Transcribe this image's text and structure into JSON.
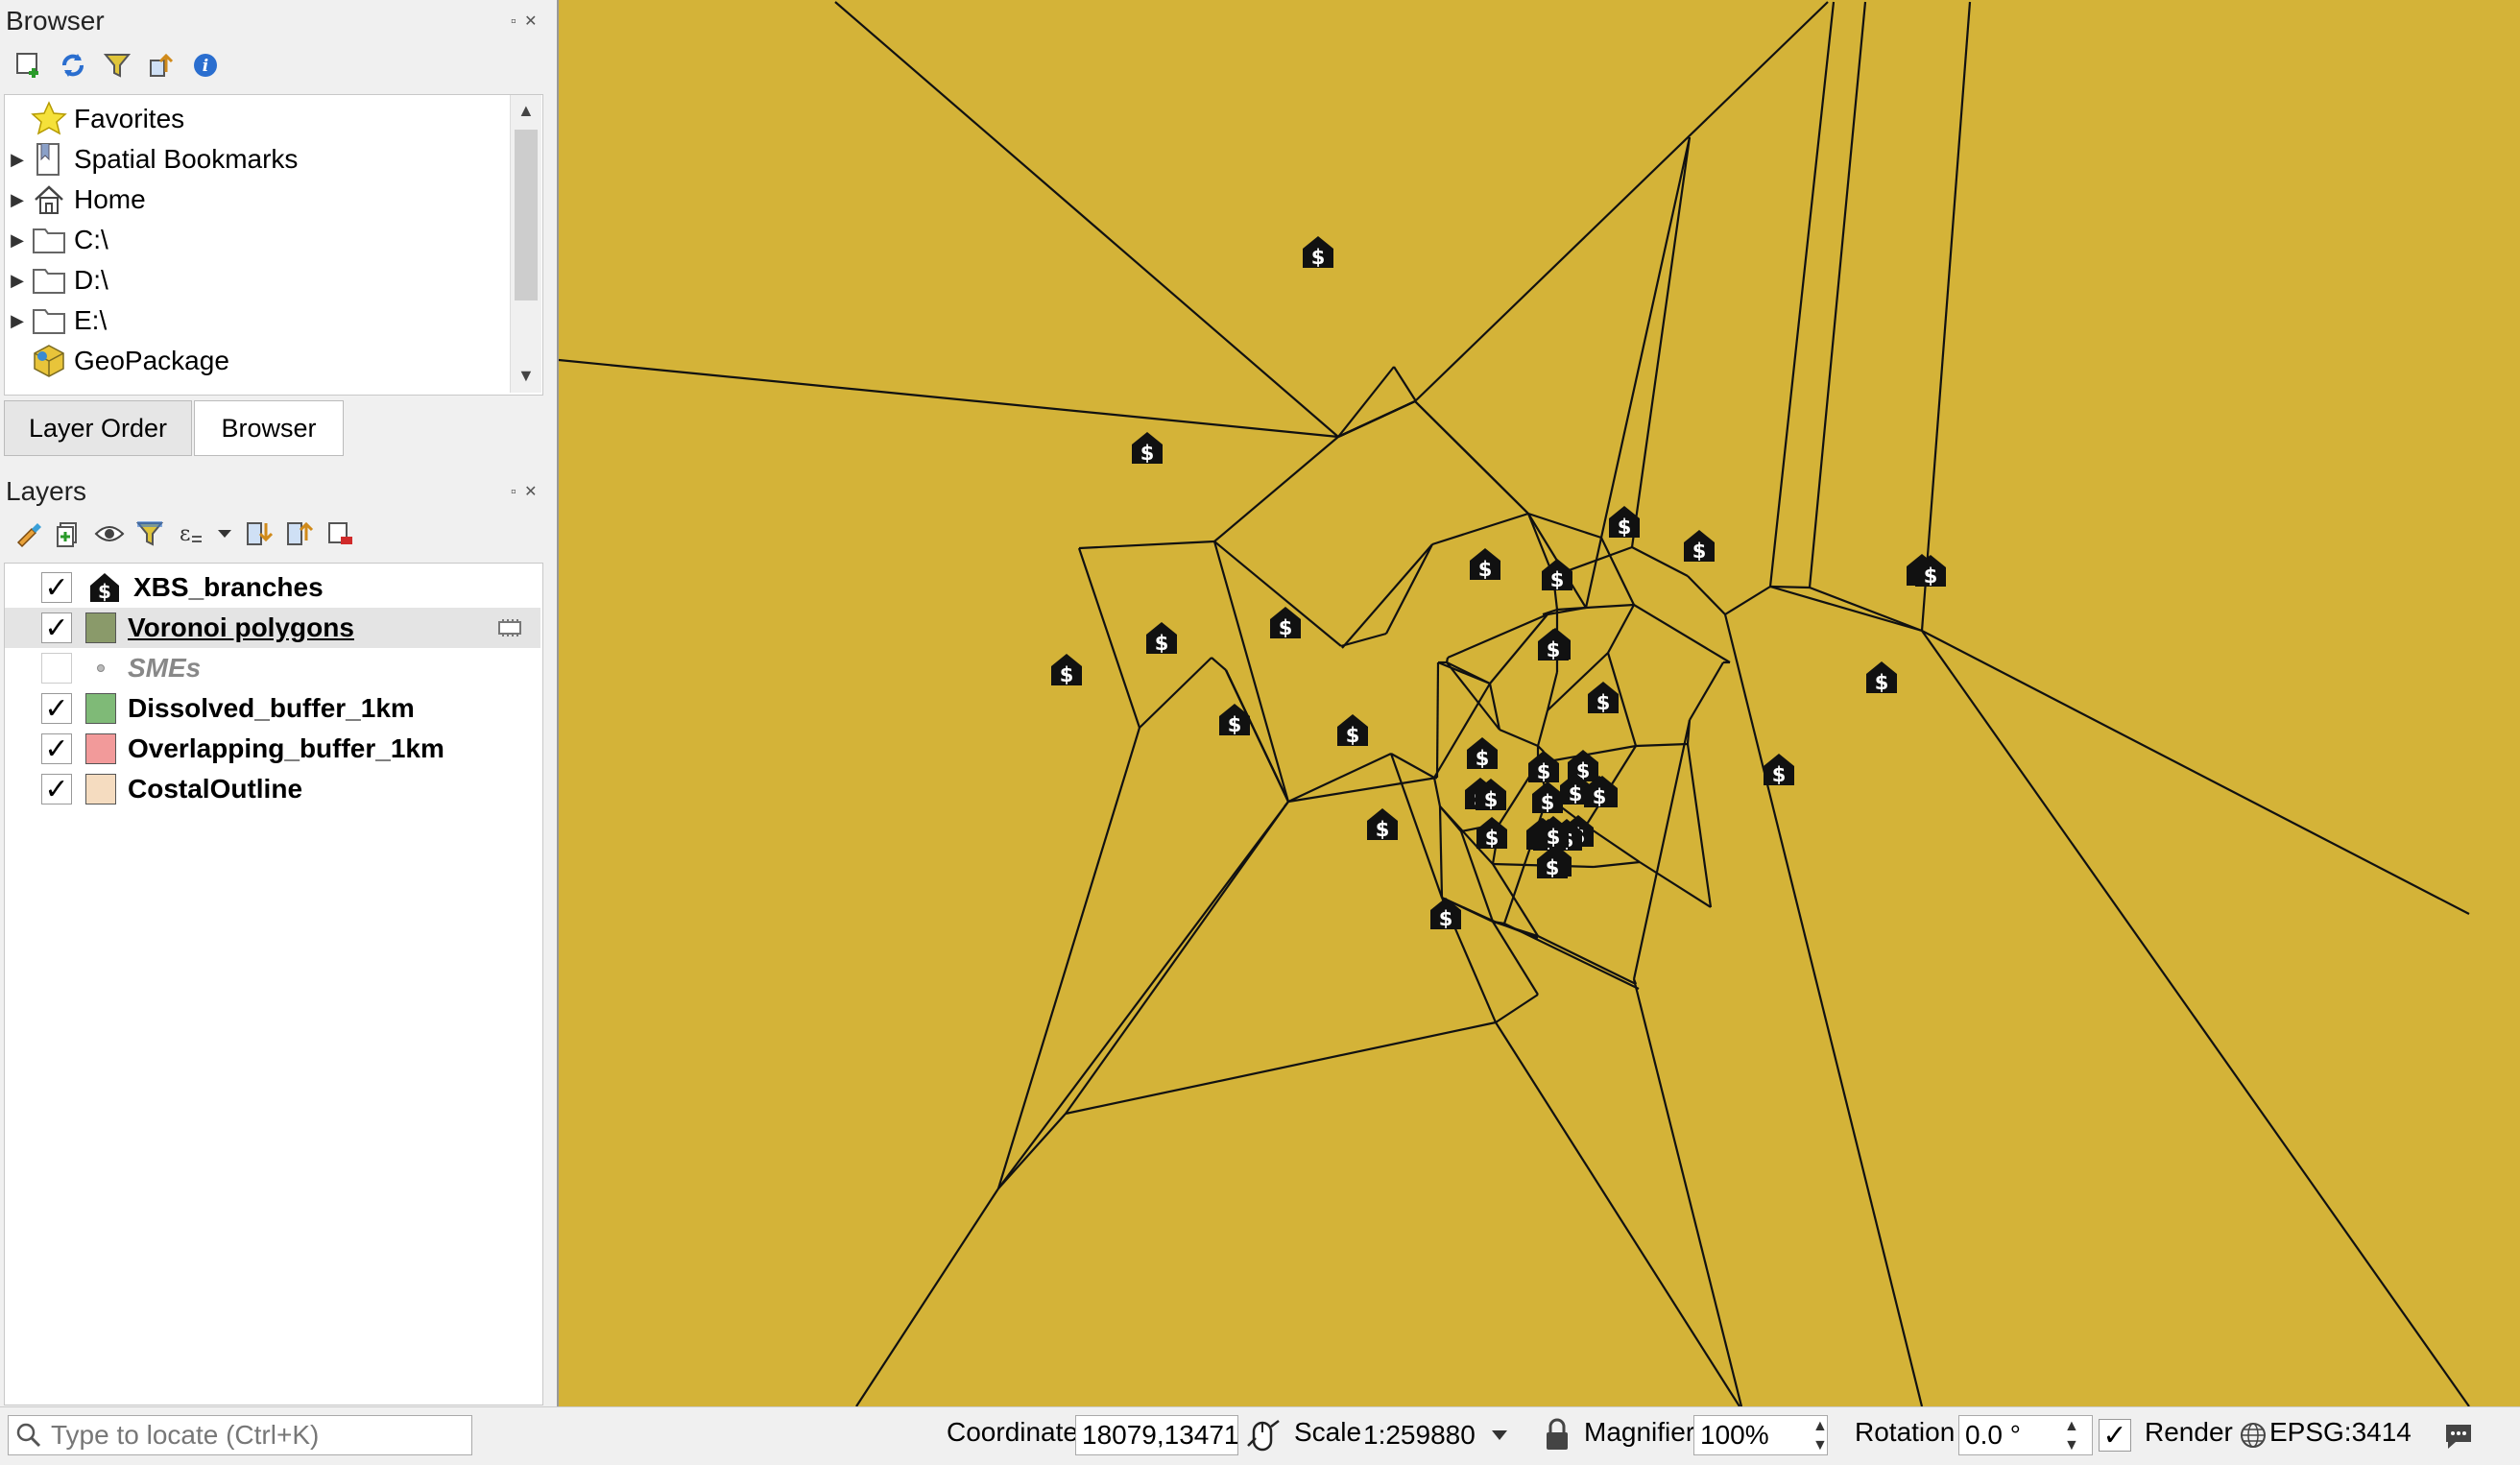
{
  "browser_panel": {
    "title": "Browser",
    "dock_controls": "▫ ✕",
    "toolbar_icons": [
      "add-layer-icon",
      "refresh-icon",
      "filter-icon",
      "collapse-icon",
      "info-icon"
    ],
    "items": [
      {
        "label": "Favorites",
        "icon": "star-icon",
        "expandable": false
      },
      {
        "label": "Spatial Bookmarks",
        "icon": "bookmark-icon",
        "expandable": true
      },
      {
        "label": "Home",
        "icon": "home-icon",
        "expandable": true
      },
      {
        "label": "C:\\",
        "icon": "folder-icon",
        "expandable": true
      },
      {
        "label": "D:\\",
        "icon": "folder-icon",
        "expandable": true
      },
      {
        "label": "E:\\",
        "icon": "folder-icon",
        "expandable": true
      },
      {
        "label": "GeoPackage",
        "icon": "geopackage-icon",
        "expandable": false
      }
    ]
  },
  "tabs": [
    {
      "label": "Layer Order",
      "active": false
    },
    {
      "label": "Browser",
      "active": true
    }
  ],
  "layers_panel": {
    "title": "Layers",
    "dock_controls": "▫ ✕",
    "toolbar_icons": [
      "style-icon",
      "add-group-icon",
      "eye-icon",
      "filter-icon",
      "expression-icon",
      "dropdown-icon",
      "expand-icon",
      "collapse-icon",
      "remove-layer-icon"
    ],
    "layers": [
      {
        "name": "XBS_branches",
        "checked": true,
        "swatch": "icon",
        "style": "bold"
      },
      {
        "name": "Voronoi polygons",
        "checked": true,
        "swatch": "#8a9a6a",
        "style": "bold-underline"
      },
      {
        "name": "SMEs",
        "checked": false,
        "swatch": "dot",
        "style": "italic-grey"
      },
      {
        "name": "Dissolved_buffer_1km",
        "checked": true,
        "swatch": "#7fba77",
        "style": "bold"
      },
      {
        "name": "Overlapping_buffer_1km",
        "checked": true,
        "swatch": "#f29a9a",
        "style": "bold"
      },
      {
        "name": "CostalOutline",
        "checked": true,
        "swatch": "#f5dcc0",
        "style": "bold"
      }
    ]
  },
  "statusbar": {
    "locate_placeholder": "Type to locate (Ctrl+K)",
    "coordinate_label": "Coordinate",
    "coordinate_value": "18079,13471",
    "scale_label": "Scale",
    "scale_value": "1:259880",
    "magnifier_label": "Magnifier",
    "magnifier_value": "100%",
    "rotation_label": "Rotation",
    "rotation_value": "0.0 °",
    "render_label": "Render",
    "render_checked": true,
    "crs": "EPSG:3414"
  },
  "map": {
    "background_color": "#d4b338",
    "line_color": "#111111",
    "marker_symbol": "$",
    "marker_icon": "bank-house-icon"
  }
}
